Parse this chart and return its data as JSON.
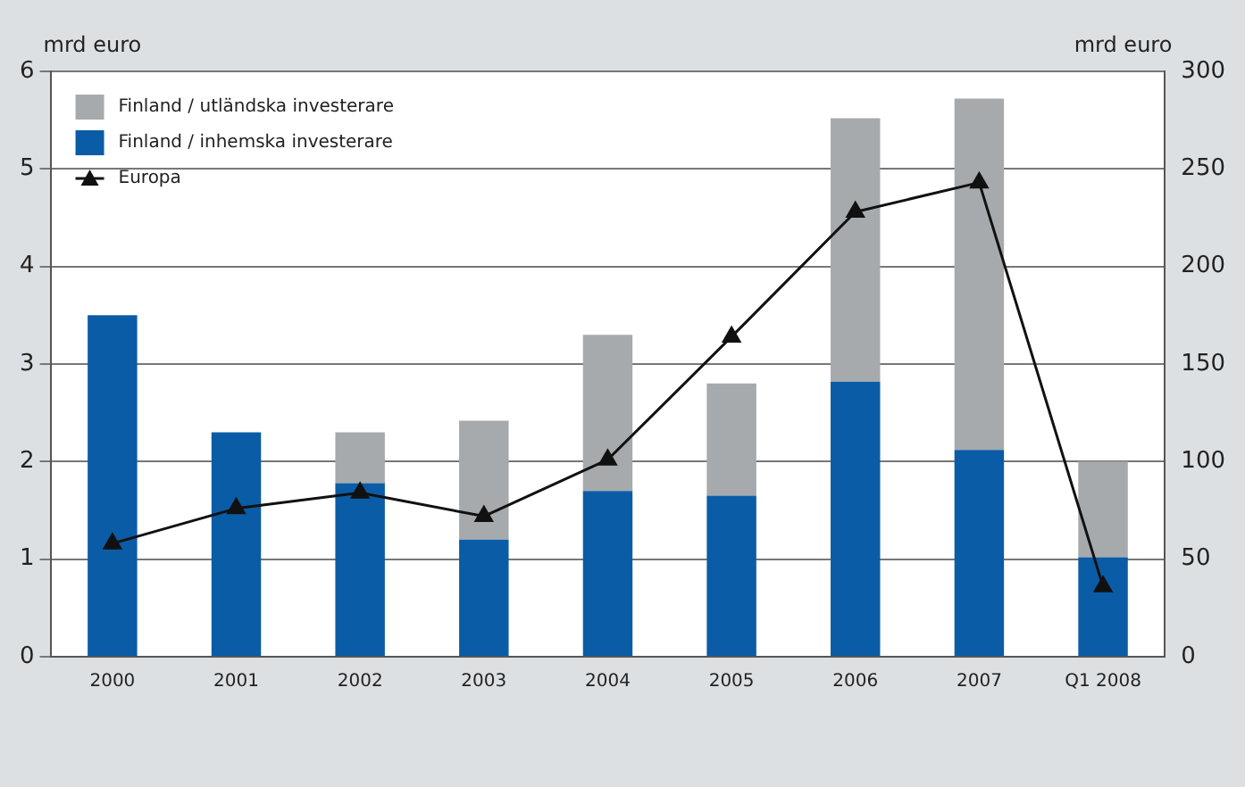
{
  "chart_data": {
    "type": "bar",
    "stacked": true,
    "ylabel": "mrd euro",
    "y2label": "mrd euro",
    "categories": [
      "2000",
      "2001",
      "2002",
      "2003",
      "2004",
      "2005",
      "2006",
      "2007",
      "Q1 2008"
    ],
    "series": [
      {
        "name": "Finland / inhemska investerare",
        "color": "#0b5ca6",
        "values": [
          3.5,
          2.3,
          1.78,
          1.2,
          1.7,
          1.65,
          2.82,
          2.12,
          1.02
        ]
      },
      {
        "name": "Finland / utländska investerare",
        "color": "#a7aaad",
        "values": [
          0,
          0,
          0.52,
          1.22,
          1.6,
          1.15,
          2.7,
          3.6,
          0.98
        ]
      },
      {
        "name": "Europa",
        "type": "line",
        "axis": "y2",
        "color": "#111111",
        "marker": "triangle",
        "values": [
          58,
          76,
          84,
          72,
          101,
          164,
          228,
          243,
          36
        ]
      }
    ],
    "ylim": [
      0,
      6
    ],
    "yticks": [
      0,
      1,
      2,
      3,
      4,
      5,
      6
    ],
    "y2lim": [
      0,
      300
    ],
    "y2ticks": [
      0,
      50,
      100,
      150,
      200,
      250,
      300
    ],
    "grid": "y",
    "legend": "top left"
  }
}
